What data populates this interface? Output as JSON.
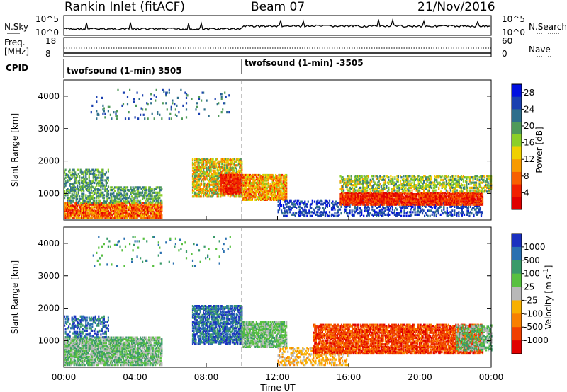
{
  "header": {
    "station": "Rankin Inlet (fitACF)",
    "beam": "Beam 07",
    "date": "21/Nov/2016"
  },
  "top_panels": {
    "nsky_label": "N.Sky",
    "nsky_ticks": [
      "10^5",
      "10^0"
    ],
    "nsearch_label": "N.Search",
    "nsearch_ticks": [
      "10^5",
      "10^0"
    ],
    "freq_label": "Freq.",
    "freq_unit": "[MHz]",
    "freq_ticks": [
      "18",
      "8"
    ],
    "nave_label": "Nave",
    "nave_ticks": [
      "60",
      "0"
    ],
    "cpid_label": "CPID",
    "cpid_segments": [
      {
        "label": "twofsound (1-min) 3505",
        "start_hour": 0,
        "end_hour": 10
      },
      {
        "label": "twofsound (1-min) -3505",
        "start_hour": 10,
        "end_hour": 24
      }
    ]
  },
  "chart_data": [
    {
      "type": "heatmap",
      "name": "power",
      "ylabel": "Slant Range [km]",
      "xlim": [
        0,
        24
      ],
      "ylim": [
        180,
        4500
      ],
      "yticks": [
        "1000",
        "2000",
        "3000",
        "4000"
      ],
      "colorbar_label": "Power [dB]",
      "colorbar_ticks": [
        "4",
        "8",
        "12",
        "16",
        "20",
        "24",
        "28"
      ],
      "colorbar_colors": [
        "#0010e0",
        "#1a40b0",
        "#2f6f8c",
        "#4f9a5a",
        "#8ccf28",
        "#f0d000",
        "#f89a00",
        "#f86000",
        "#f02000",
        "#e00000"
      ],
      "colorbar_range": [
        0,
        30
      ],
      "dashed_marker_hour": 10
    },
    {
      "type": "heatmap",
      "name": "velocity",
      "ylabel": "Slant Range [km]",
      "xlabel": "Time UT",
      "xlim": [
        0,
        24
      ],
      "ylim": [
        180,
        4500
      ],
      "xticks": [
        "00:00",
        "04:00",
        "08:00",
        "12:00",
        "16:00",
        "20:00",
        "00:00"
      ],
      "yticks": [
        "1000",
        "2000",
        "3000",
        "4000"
      ],
      "colorbar_label": "Velocity [m s",
      "colorbar_label_sup": "-1",
      "colorbar_label_end": "]",
      "colorbar_ticks": [
        "1000",
        "500",
        "100",
        "25",
        "-25",
        "-100",
        "-500",
        "-1000"
      ],
      "colorbar_colors": [
        "#1a30c0",
        "#2a70b0",
        "#3a9a6a",
        "#58c040",
        "#b8b8b8",
        "#f8b000",
        "#f88000",
        "#f04000",
        "#e00000"
      ],
      "dashed_marker_hour": 10
    }
  ],
  "time_axis": {
    "xlabel": "Time UT"
  }
}
